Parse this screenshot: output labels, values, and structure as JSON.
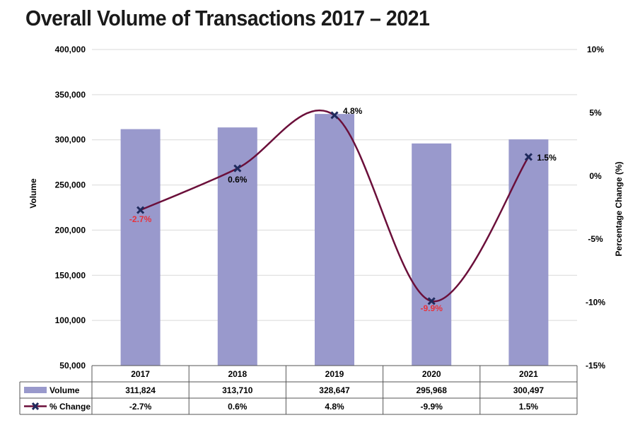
{
  "chart_data": {
    "type": "bar",
    "title": "Overall Volume of Transactions 2017 – 2021",
    "categories": [
      "2017",
      "2018",
      "2019",
      "2020",
      "2021"
    ],
    "series": [
      {
        "name": "Volume",
        "type": "bar",
        "axis": "left",
        "values": [
          311824,
          313710,
          328647,
          295968,
          300497
        ],
        "table_values": [
          "311,824",
          "313,710",
          "328,647",
          "295,968",
          "300,497"
        ],
        "color": "#9999cc"
      },
      {
        "name": "% Change",
        "type": "line",
        "axis": "right",
        "smooth": true,
        "values": [
          -2.7,
          0.6,
          4.8,
          -9.9,
          1.5
        ],
        "table_values": [
          "-2.7%",
          "0.6%",
          "4.8%",
          "-9.9%",
          "1.5%"
        ],
        "color": "#6b0f3a",
        "marker_color": "#1f2a5c"
      }
    ],
    "data_labels": [
      "-2.7%",
      "0.6%",
      "4.8%",
      "-9.9%",
      "1.5%"
    ],
    "ylabel": "Volume",
    "ylabel_right": "Percentage Change (%)",
    "ylim": [
      50000,
      400000
    ],
    "ylim_right": [
      -15,
      10
    ],
    "yticks": [
      "400,000",
      "350,000",
      "300,000",
      "250,000",
      "200,000",
      "150,000",
      "100,000",
      "50,000"
    ],
    "yticks_right": [
      "10%",
      "5%",
      "0%",
      "-5%",
      "-10%",
      "-15%"
    ],
    "grid": true,
    "legend": "data-table",
    "negative_label_color": "#e8323c",
    "positive_label_color": "#000000"
  }
}
